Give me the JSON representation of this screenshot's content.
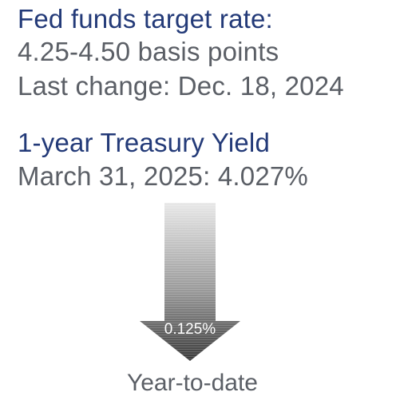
{
  "fed_funds": {
    "title": "Fed funds target rate:",
    "range": "4.25-4.50 basis points",
    "last_change": "Last change: Dec. 18, 2024"
  },
  "treasury": {
    "title": "1-year Treasury Yield",
    "value_line": "March 31, 2025: 4.027%"
  },
  "ytd_change": {
    "direction": "down",
    "value": "0.125%",
    "label": "Year-to-date"
  },
  "colors": {
    "title_navy": "#233a78",
    "text_gray": "#5b5f66",
    "arrow_light": "#e6e6e6",
    "arrow_dark": "#3a3a3a"
  },
  "icons": {
    "arrow": "down-arrow-icon"
  }
}
